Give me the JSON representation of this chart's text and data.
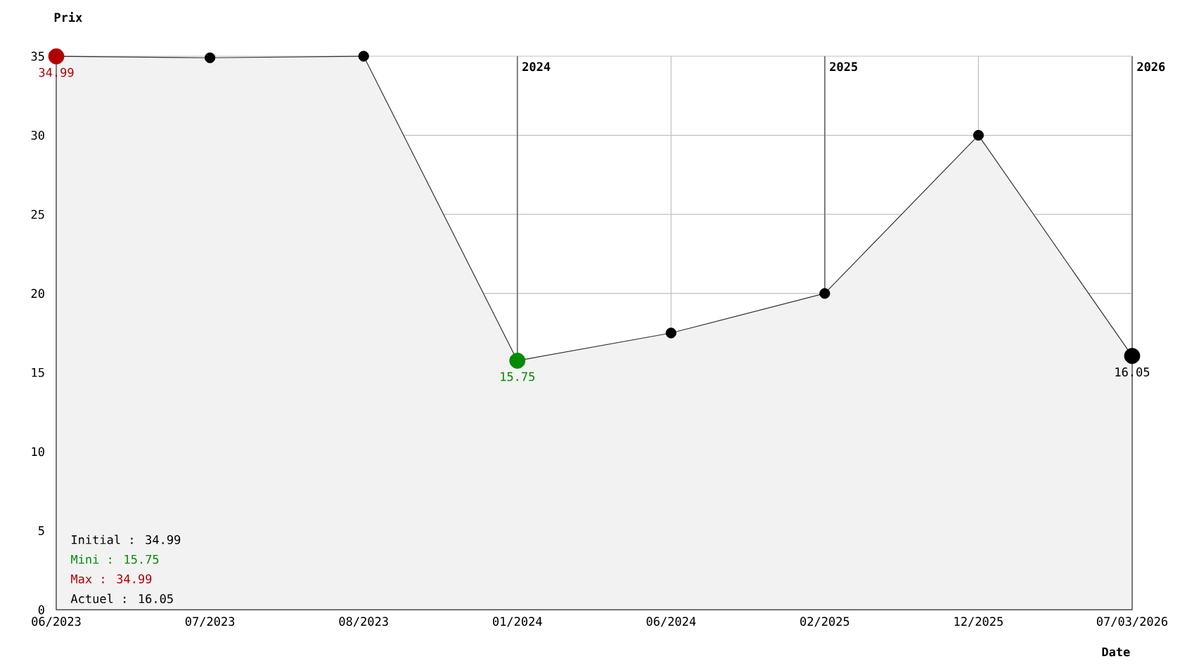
{
  "chart_data": {
    "type": "area",
    "xlabel": "Date",
    "ylabel": "Prix",
    "categories": [
      "06/2023",
      "07/2023",
      "08/2023",
      "01/2024",
      "06/2024",
      "02/2025",
      "12/2025",
      "07/03/2026"
    ],
    "values": [
      34.99,
      34.9,
      35,
      15.75,
      17.5,
      20,
      30,
      16.05
    ],
    "color": "#f2f2f2",
    "colors": [
      "#b00000",
      "#000000",
      "#000000",
      "#008c00",
      "#000000",
      "#000000",
      "#000000",
      "#000000"
    ],
    "value_labels": [
      "34.99",
      null,
      null,
      "15.75",
      null,
      null,
      null,
      "16.05"
    ],
    "ylim": [
      0,
      35
    ],
    "yticks": [
      0,
      5,
      10,
      15,
      20,
      25,
      30,
      35
    ],
    "grid": true,
    "marker": "circle",
    "ref_lines": [
      {
        "axis": "x",
        "value": "01/2024",
        "label": "2024"
      },
      {
        "axis": "x",
        "value": "02/2025",
        "label": "2025"
      },
      {
        "axis": "x",
        "value": "07/03/2026",
        "label": "2026"
      }
    ],
    "annotations": [
      "Initial : 34.99",
      "Mini : 15.75",
      "Max : 34.99",
      "Actuel : 16.05"
    ]
  }
}
